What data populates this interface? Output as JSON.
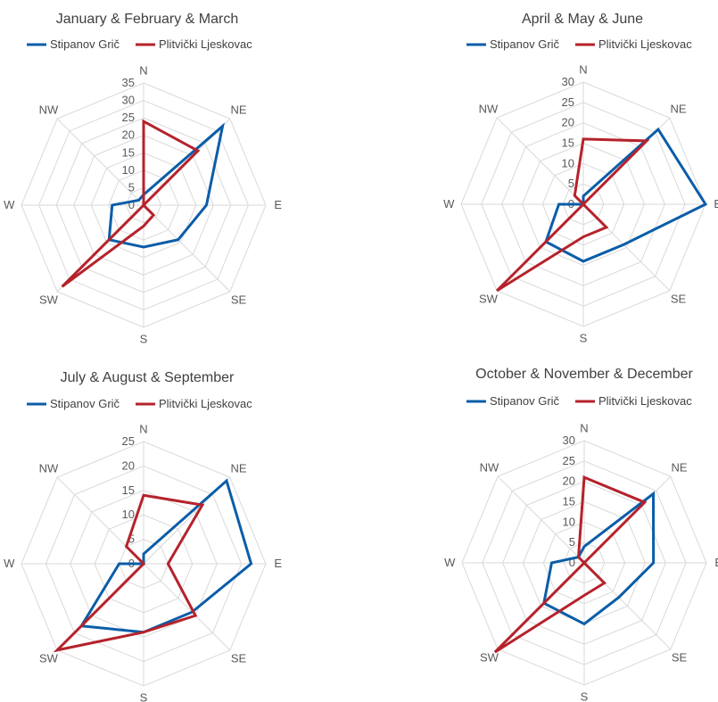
{
  "chart_data": [
    {
      "type": "radar",
      "title": "January & February & March",
      "categories": [
        "N",
        "NE",
        "E",
        "SE",
        "S",
        "SW",
        "W",
        "NW"
      ],
      "rmax": 35,
      "ticks": [
        "0",
        "5",
        "10",
        "15",
        "20",
        "25",
        "30",
        "35"
      ],
      "series": [
        {
          "name": "Stipanov Grič",
          "color": "#0B5DA8",
          "values": [
            3,
            32,
            18,
            14,
            12,
            14,
            9,
            2
          ]
        },
        {
          "name": "Plitvički Ljeskovac",
          "color": "#B5222B",
          "values": [
            24,
            22,
            0,
            4,
            6,
            33,
            0,
            0
          ]
        }
      ]
    },
    {
      "type": "radar",
      "title": "April & May & June",
      "categories": [
        "N",
        "NE",
        "E",
        "SE",
        "S",
        "SW",
        "W",
        "NW"
      ],
      "rmax": 30,
      "ticks": [
        "0",
        "5",
        "10",
        "15",
        "20",
        "25",
        "30"
      ],
      "series": [
        {
          "name": "Stipanov Grič",
          "color": "#0B5DA8",
          "values": [
            2,
            26,
            30,
            14,
            14,
            13,
            6,
            0
          ]
        },
        {
          "name": "Plitvički Ljeskovac",
          "color": "#B5222B",
          "values": [
            16,
            22,
            0,
            8,
            8,
            30,
            0,
            3
          ]
        }
      ]
    },
    {
      "type": "radar",
      "title": "July & August & September",
      "categories": [
        "N",
        "NE",
        "E",
        "SE",
        "S",
        "SW",
        "W",
        "NW"
      ],
      "rmax": 25,
      "ticks": [
        "0",
        "5",
        "10",
        "15",
        "20",
        "25"
      ],
      "series": [
        {
          "name": "Stipanov Grič",
          "color": "#0B5DA8",
          "values": [
            2,
            24,
            22,
            14,
            14,
            18,
            5,
            0
          ]
        },
        {
          "name": "Plitvički Ljeskovac",
          "color": "#B5222B",
          "values": [
            14,
            17,
            5,
            15,
            14,
            25,
            0,
            5
          ]
        }
      ]
    },
    {
      "type": "radar",
      "title": "October & November & December",
      "categories": [
        "N",
        "NE",
        "E",
        "SE",
        "S",
        "SW",
        "W",
        "NW"
      ],
      "rmax": 30,
      "ticks": [
        "0",
        "5",
        "10",
        "15",
        "20",
        "25",
        "30"
      ],
      "series": [
        {
          "name": "Stipanov Grič",
          "color": "#0B5DA8",
          "values": [
            4,
            24,
            17,
            12,
            15,
            14,
            8,
            2
          ]
        },
        {
          "name": "Plitvički Ljeskovac",
          "color": "#B5222B",
          "values": [
            21,
            21,
            0,
            7,
            8,
            31,
            0,
            2
          ]
        }
      ]
    }
  ]
}
